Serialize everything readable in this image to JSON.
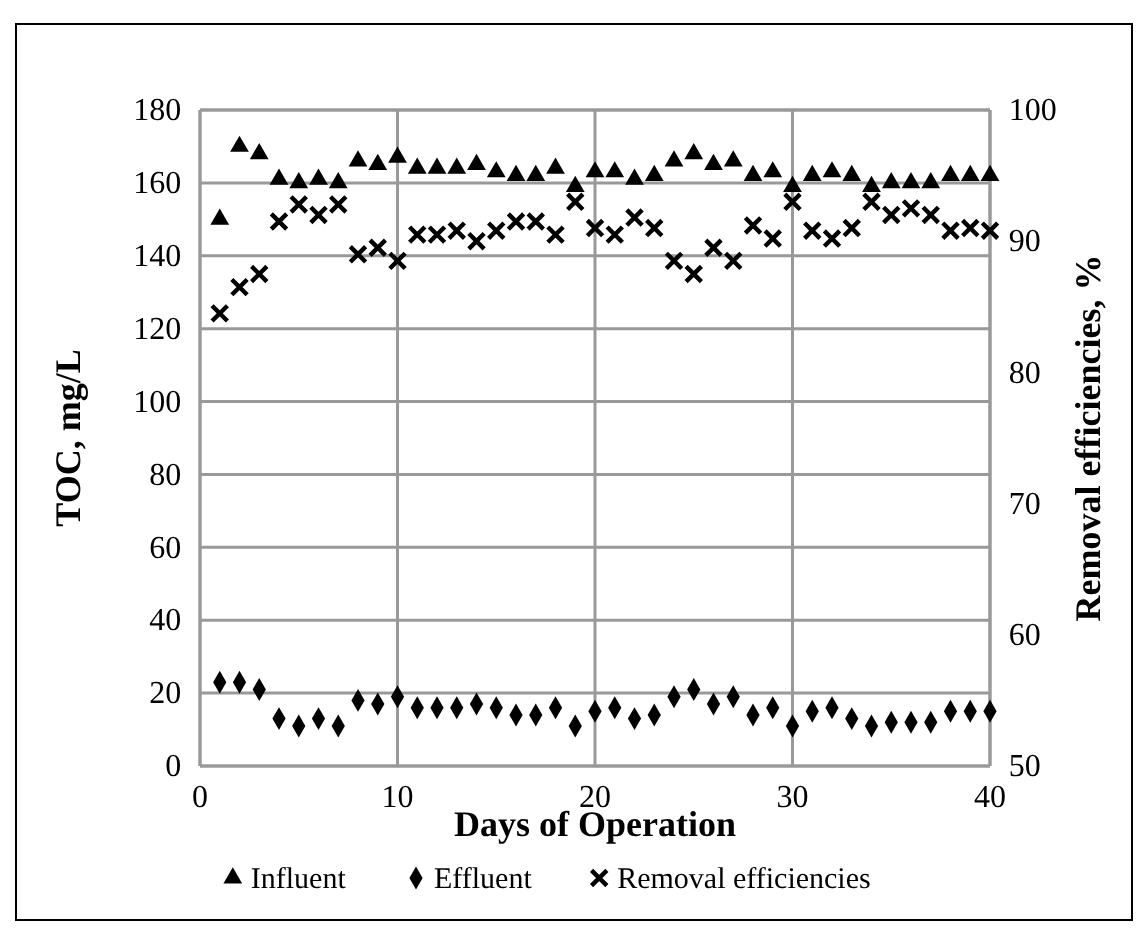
{
  "chart_data": {
    "type": "scatter",
    "xlabel": "Days of Operation",
    "ylabel": "TOC, mg/L",
    "y2label": "Removal efficiencies, %",
    "x": [
      1,
      2,
      3,
      4,
      5,
      6,
      7,
      8,
      9,
      10,
      11,
      12,
      13,
      14,
      15,
      16,
      17,
      18,
      19,
      20,
      21,
      22,
      23,
      24,
      25,
      26,
      27,
      28,
      29,
      30,
      31,
      32,
      33,
      34,
      35,
      36,
      37,
      38,
      39,
      40
    ],
    "series": [
      {
        "name": "Influent",
        "color": "#000000",
        "marker": "triangle",
        "values": [
          150,
          170,
          168,
          161,
          160,
          161,
          160,
          166,
          165,
          167,
          164,
          164,
          164,
          165,
          163,
          162,
          162,
          164,
          159,
          163,
          163,
          161,
          162,
          166,
          168,
          165,
          166,
          162,
          163,
          159,
          162,
          163,
          162,
          159,
          160,
          160,
          160,
          162,
          162,
          162
        ]
      },
      {
        "name": "Effluent",
        "color": "#000000",
        "marker": "diamond",
        "values": [
          23,
          23,
          21,
          13,
          11,
          13,
          11,
          18,
          17,
          19,
          16,
          16,
          16,
          17,
          16,
          14,
          14,
          16,
          11,
          15,
          16,
          13,
          14,
          19,
          21,
          17,
          19,
          14,
          16,
          11,
          15,
          16,
          13,
          11,
          12,
          12,
          12,
          15,
          15,
          15
        ]
      },
      {
        "name": "Removal efficiencies",
        "color": "#000000",
        "marker": "cross",
        "axis": "y2",
        "values": [
          84.5,
          86.5,
          87.5,
          91.5,
          92.8,
          92,
          92.8,
          89,
          89.5,
          88.5,
          90.5,
          90.5,
          90.8,
          90,
          90.8,
          91.5,
          91.5,
          90.5,
          93,
          91,
          90.5,
          91.8,
          91,
          88.5,
          87.5,
          89.5,
          88.5,
          91.2,
          90.2,
          93,
          90.8,
          90.2,
          91,
          93,
          92,
          92.5,
          92,
          90.8,
          91,
          90.8
        ]
      }
    ],
    "xlim": [
      0,
      40
    ],
    "xticks": [
      0,
      10,
      20,
      30,
      40
    ],
    "ylim": [
      0,
      180
    ],
    "yticks": [
      0,
      20,
      40,
      60,
      80,
      100,
      120,
      140,
      160,
      180
    ],
    "y2lim": [
      50,
      100
    ],
    "y2ticks": [
      50,
      60,
      70,
      80,
      90,
      100
    ],
    "grid": true,
    "legend": "bottom"
  }
}
